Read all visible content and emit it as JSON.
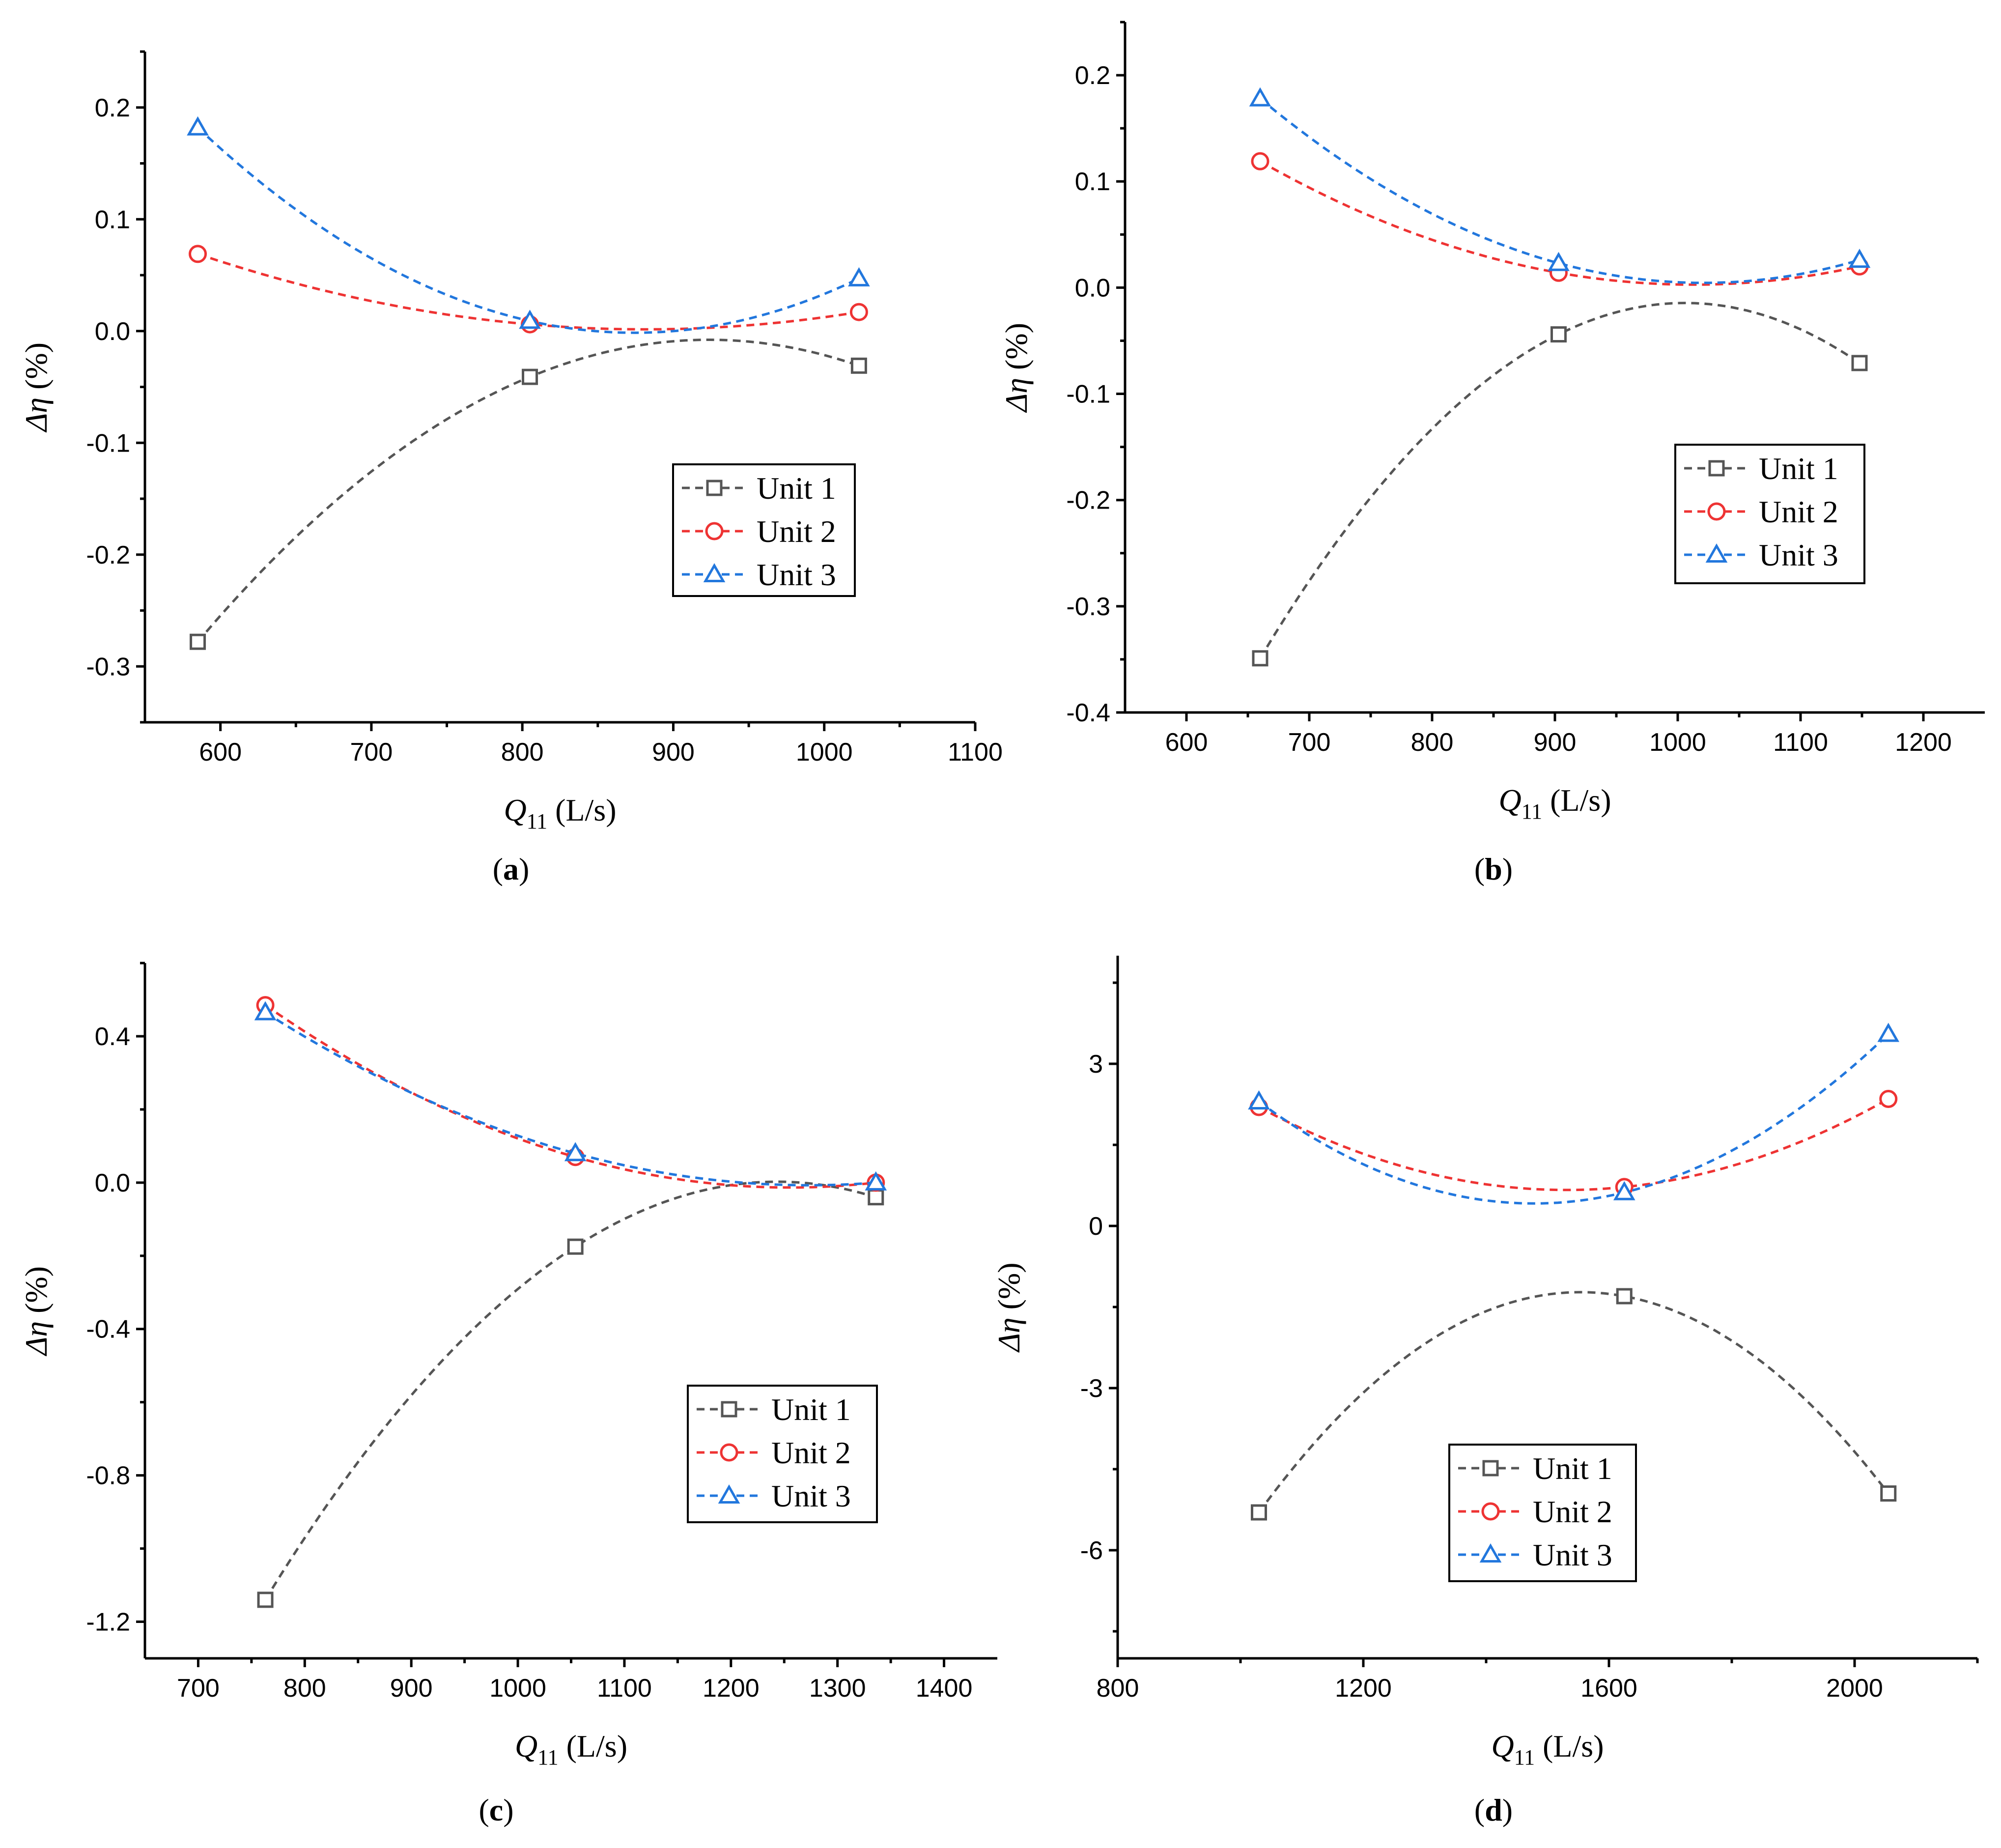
{
  "chart_data": [
    {
      "type": "line",
      "panel_label": "a",
      "xlabel": {
        "symbol": "Q",
        "sub": "11",
        "unit": " (L/s)"
      },
      "ylabel": {
        "symbol": "Δη",
        "unit": " (%)"
      },
      "xlim": [
        550,
        1100
      ],
      "ylim": [
        -0.35,
        0.25
      ],
      "xticks": [
        600,
        700,
        800,
        900,
        1000,
        1100
      ],
      "xtick_labels": [
        "600",
        "700",
        "800",
        "900",
        "1000",
        "1100"
      ],
      "yticks": [
        -0.3,
        -0.2,
        -0.1,
        0.0,
        0.1,
        0.2
      ],
      "ytick_labels": [
        "-0.3",
        "-0.2",
        "-0.1",
        "0.0",
        "0.1",
        "0.2"
      ],
      "legend_position": "center-right",
      "series": [
        {
          "name": "Unit 1",
          "marker": "square",
          "color": "#555555",
          "x": [
            585,
            805,
            1023
          ],
          "y": [
            -0.278,
            -0.041,
            -0.031
          ]
        },
        {
          "name": "Unit 2",
          "marker": "circle",
          "color": "#ee3333",
          "x": [
            585,
            805,
            1023
          ],
          "y": [
            0.069,
            0.006,
            0.017
          ]
        },
        {
          "name": "Unit 3",
          "marker": "triangle",
          "color": "#2277dd",
          "x": [
            585,
            805,
            1023
          ],
          "y": [
            0.182,
            0.009,
            0.047
          ]
        }
      ]
    },
    {
      "type": "line",
      "panel_label": "b",
      "xlabel": {
        "symbol": "Q",
        "sub": "11",
        "unit": " (L/s)"
      },
      "ylabel": {
        "symbol": "Δη",
        "unit": " (%)"
      },
      "xlim": [
        550,
        1250
      ],
      "ylim": [
        -0.4,
        0.25
      ],
      "xticks": [
        600,
        700,
        800,
        900,
        1000,
        1100,
        1200
      ],
      "xtick_labels": [
        "600",
        "700",
        "800",
        "900",
        "1000",
        "1100",
        "1200"
      ],
      "yticks": [
        -0.4,
        -0.3,
        -0.2,
        -0.1,
        0.0,
        0.1,
        0.2
      ],
      "ytick_labels": [
        "-0.4",
        "-0.3",
        "-0.2",
        "-0.1",
        "0.0",
        "0.1",
        "0.2"
      ],
      "legend_position": "center-right",
      "series": [
        {
          "name": "Unit 1",
          "marker": "square",
          "color": "#555555",
          "x": [
            660,
            903,
            1148
          ],
          "y": [
            -0.349,
            -0.044,
            -0.071
          ]
        },
        {
          "name": "Unit 2",
          "marker": "circle",
          "color": "#ee3333",
          "x": [
            660,
            903,
            1148
          ],
          "y": [
            0.119,
            0.014,
            0.02
          ]
        },
        {
          "name": "Unit 3",
          "marker": "triangle",
          "color": "#2277dd",
          "x": [
            660,
            903,
            1148
          ],
          "y": [
            0.178,
            0.023,
            0.026
          ]
        }
      ]
    },
    {
      "type": "line",
      "panel_label": "c",
      "xlabel": {
        "symbol": "Q",
        "sub": "11",
        "unit": " (L/s)"
      },
      "ylabel": {
        "symbol": "Δη",
        "unit": " (%)"
      },
      "xlim": [
        650,
        1450
      ],
      "ylim": [
        -1.3,
        0.6
      ],
      "xticks": [
        700,
        800,
        900,
        1000,
        1100,
        1200,
        1300,
        1400
      ],
      "xtick_labels": [
        "700",
        "800",
        "900",
        "1000",
        "1100",
        "1200",
        "1300",
        "1400"
      ],
      "yticks": [
        -1.2,
        -0.8,
        -0.4,
        0.0,
        0.4
      ],
      "ytick_labels": [
        "-1.2",
        "-0.8",
        "-0.4",
        "0.0",
        "0.4"
      ],
      "legend_position": "bottom-right",
      "series": [
        {
          "name": "Unit 1",
          "marker": "square",
          "color": "#555555",
          "x": [
            763,
            1054,
            1336
          ],
          "y": [
            -1.14,
            -0.175,
            -0.04
          ]
        },
        {
          "name": "Unit 2",
          "marker": "circle",
          "color": "#ee3333",
          "x": [
            763,
            1054,
            1336
          ],
          "y": [
            0.485,
            0.07,
            0.0
          ]
        },
        {
          "name": "Unit 3",
          "marker": "triangle",
          "color": "#2277dd",
          "x": [
            763,
            1054,
            1336
          ],
          "y": [
            0.465,
            0.08,
            0.0
          ]
        }
      ]
    },
    {
      "type": "line",
      "panel_label": "d",
      "xlabel": {
        "symbol": "Q",
        "sub": "11",
        "unit": " (L/s)"
      },
      "ylabel": {
        "symbol": "Δη",
        "unit": " (%)"
      },
      "xlim": [
        800,
        2200
      ],
      "ylim": [
        -8,
        5
      ],
      "xticks": [
        800,
        1200,
        1600,
        2000
      ],
      "xtick_labels": [
        "800",
        "1200",
        "1600",
        "2000"
      ],
      "minor_xticks": [
        1000,
        1400,
        1800,
        2200
      ],
      "yticks": [
        -6,
        -3,
        0,
        3
      ],
      "ytick_labels": [
        "-6",
        "-3",
        "0",
        "3"
      ],
      "legend_position": "bottom-center",
      "series": [
        {
          "name": "Unit 1",
          "marker": "square",
          "color": "#555555",
          "x": [
            1030,
            1625,
            2055
          ],
          "y": [
            -5.3,
            -1.3,
            -4.95
          ]
        },
        {
          "name": "Unit 2",
          "marker": "circle",
          "color": "#ee3333",
          "x": [
            1030,
            1625,
            2055
          ],
          "y": [
            2.2,
            0.72,
            2.35
          ]
        },
        {
          "name": "Unit 3",
          "marker": "triangle",
          "color": "#2277dd",
          "x": [
            1030,
            1625,
            2055
          ],
          "y": [
            2.3,
            0.62,
            3.55
          ]
        }
      ]
    }
  ]
}
